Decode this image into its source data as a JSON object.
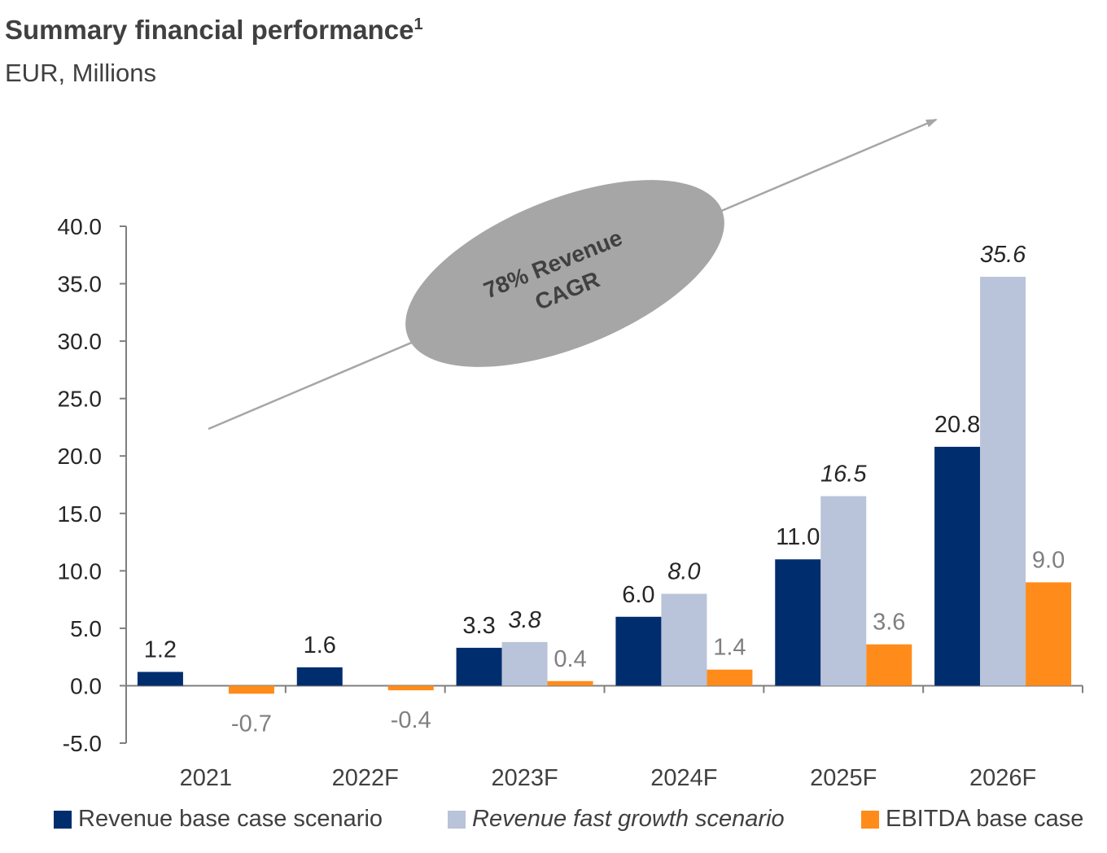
{
  "title": "Summary financial performance",
  "title_footnote": "1",
  "subtitle": "EUR, Millions",
  "colors": {
    "revenue_base": "#002D6E",
    "revenue_fast": "#B9C3D9",
    "ebitda": "#FF8C1A",
    "axis": "#7F7F7F",
    "annotation_fill": "#A6A6A6",
    "annotation_text": "#404040",
    "arrow": "#A6A6A6"
  },
  "annotation": {
    "line1": "78% Revenue",
    "line2": "CAGR"
  },
  "chart_data": {
    "type": "bar",
    "categories": [
      "2021",
      "2022F",
      "2023F",
      "2024F",
      "2025F",
      "2026F"
    ],
    "ylim": [
      -5,
      40
    ],
    "yticks": [
      "40.0",
      "35.0",
      "30.0",
      "25.0",
      "20.0",
      "15.0",
      "10.0",
      "5.0",
      "0.0",
      "-5.0"
    ],
    "ytick_values": [
      40,
      35,
      30,
      25,
      20,
      15,
      10,
      5,
      0,
      -5
    ],
    "grid": false,
    "legend_position": "bottom",
    "series": [
      {
        "name": "Revenue base case scenario",
        "values": [
          1.2,
          1.6,
          3.3,
          6.0,
          11.0,
          20.8
        ],
        "labels": [
          "1.2",
          "1.6",
          "3.3",
          "6.0",
          "11.0",
          "20.8"
        ]
      },
      {
        "name": "Revenue fast growth scenario",
        "values": [
          null,
          null,
          3.8,
          8.0,
          16.5,
          35.6
        ],
        "labels": [
          "",
          "",
          "3.8",
          "8.0",
          "16.5",
          "35.6"
        ]
      },
      {
        "name": "EBITDA base case",
        "values": [
          -0.7,
          -0.4,
          0.4,
          1.4,
          3.6,
          9.0
        ],
        "labels": [
          "-0.7",
          "-0.4",
          "0.4",
          "1.4",
          "3.6",
          "9.0"
        ]
      }
    ]
  }
}
